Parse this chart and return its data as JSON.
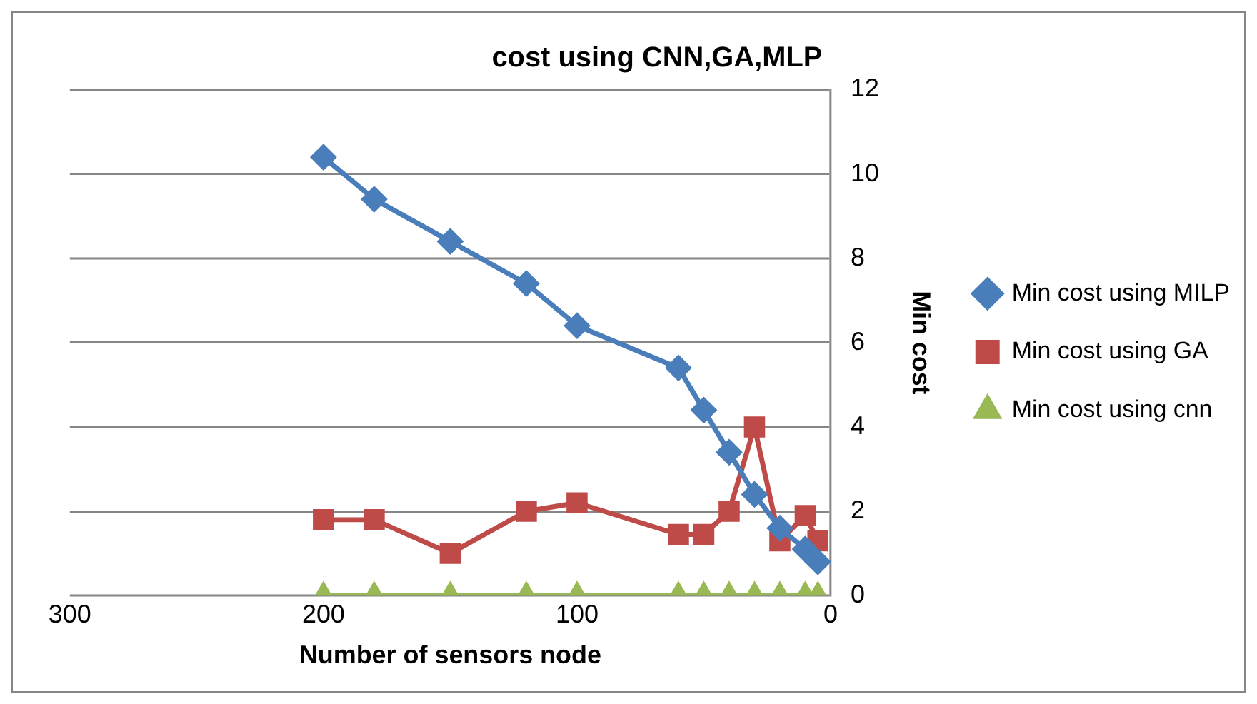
{
  "chart_data": {
    "type": "line",
    "title": "cost using CNN,GA,MLP",
    "xlabel": "Number of sensors node",
    "ylabel": "Min cost",
    "x": [
      200,
      180,
      150,
      120,
      100,
      60,
      50,
      40,
      30,
      20,
      10,
      5
    ],
    "series": [
      {
        "name": "Min cost using MILP",
        "color": "#4a7ebb",
        "marker": "diamond",
        "values": [
          10.4,
          9.4,
          8.4,
          7.4,
          6.4,
          5.4,
          4.4,
          3.4,
          2.4,
          1.6,
          1.1,
          0.8
        ]
      },
      {
        "name": "Min cost using GA",
        "color": "#be4b48",
        "marker": "square",
        "values": [
          1.8,
          1.8,
          1.0,
          2.0,
          2.2,
          1.45,
          1.45,
          2.0,
          4.0,
          1.3,
          1.9,
          1.3
        ]
      },
      {
        "name": "Min cost using cnn",
        "color": "#98b954",
        "marker": "triangle",
        "values": [
          0,
          0,
          0,
          0,
          0,
          0,
          0,
          0,
          0,
          0,
          0,
          0
        ]
      }
    ],
    "xlim": [
      300,
      0
    ],
    "xticks": [
      300,
      200,
      100,
      0
    ],
    "ylim": [
      0,
      12
    ],
    "yticks": [
      0,
      2,
      4,
      6,
      8,
      10,
      12
    ],
    "grid": "y",
    "legend": "right"
  }
}
